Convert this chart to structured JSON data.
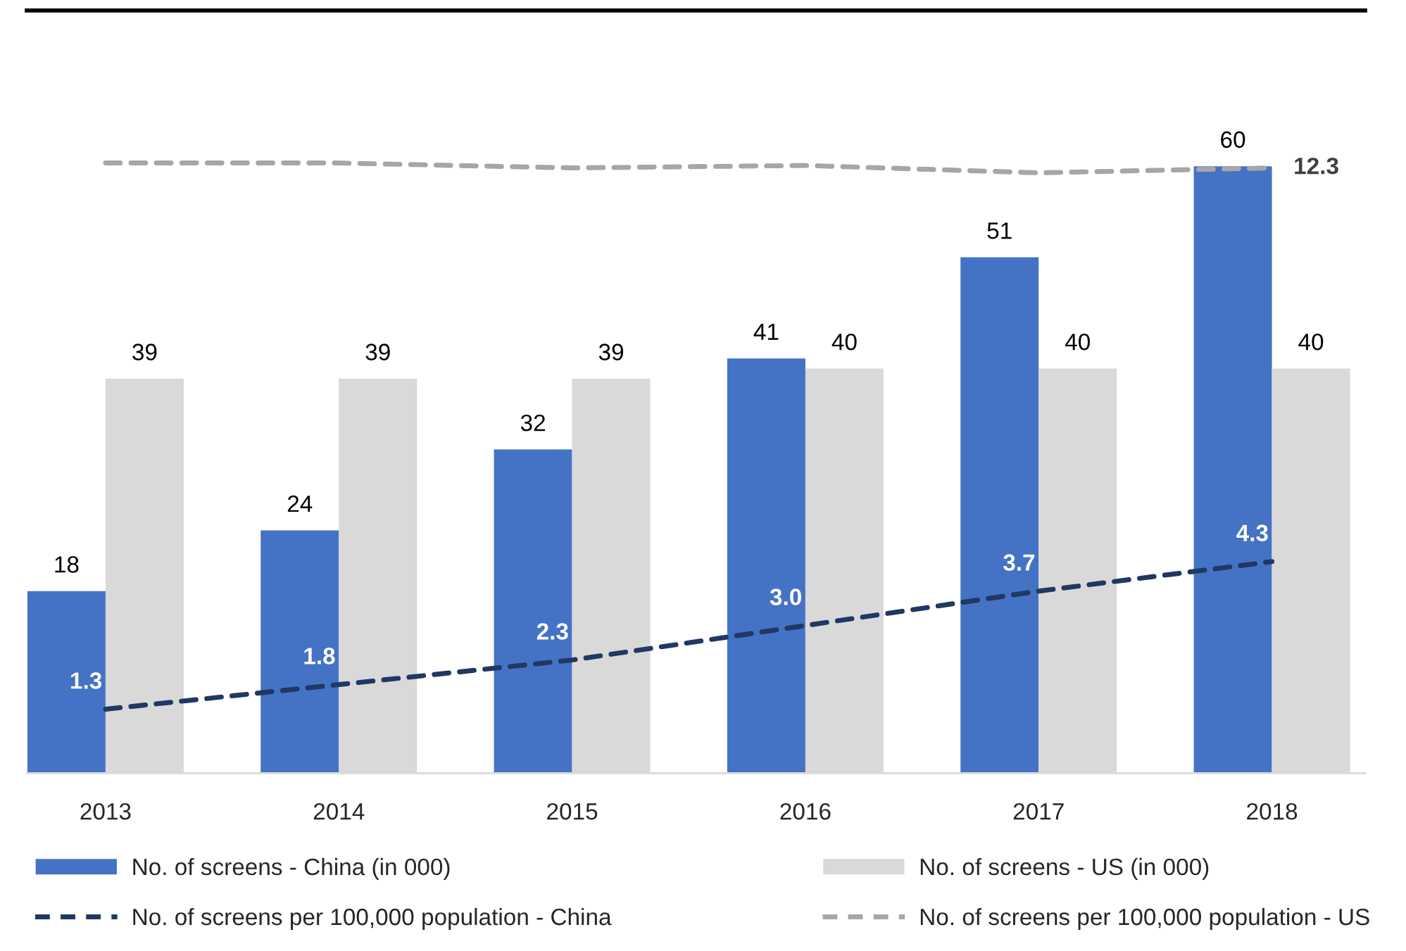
{
  "chart_data": {
    "type": "bar",
    "categories": [
      "2013",
      "2014",
      "2015",
      "2016",
      "2017",
      "2018"
    ],
    "series": [
      {
        "name": "No. of screens - China (in 000)",
        "color": "#4472c4",
        "values": [
          18,
          24,
          32,
          41,
          51,
          60
        ],
        "value_labels": [
          "18",
          "24",
          "32",
          "41",
          "51",
          "60"
        ]
      },
      {
        "name": "No. of screens - US (in 000)",
        "color": "#d9d9d9",
        "values": [
          39,
          39,
          39,
          40,
          40,
          40
        ],
        "value_labels": [
          "39",
          "39",
          "39",
          "40",
          "40",
          "40"
        ]
      },
      {
        "name": "No. of screens per 100,000 population - China",
        "type": "line",
        "axis": "y2",
        "color": "#203864",
        "line_style": "dashed",
        "values": [
          1.3,
          1.8,
          2.3,
          3.0,
          3.7,
          4.3
        ],
        "value_labels": [
          "1.3",
          "1.8",
          "2.3",
          "3.0",
          "3.7",
          "4.3"
        ]
      },
      {
        "name": "No. of screens per 100,000 population - US",
        "type": "line",
        "axis": "y2",
        "color": "#a6a6a6",
        "line_style": "dashed",
        "values": [
          12.4,
          12.4,
          12.3,
          12.35,
          12.2,
          12.3
        ],
        "value_labels": [
          null,
          null,
          null,
          null,
          null,
          "12.3"
        ]
      }
    ],
    "ylim": [
      0,
      75.4
    ],
    "y2lim": [
      0,
      15.5
    ],
    "tick_labels": "x",
    "legend": "bottom",
    "grid": false
  }
}
